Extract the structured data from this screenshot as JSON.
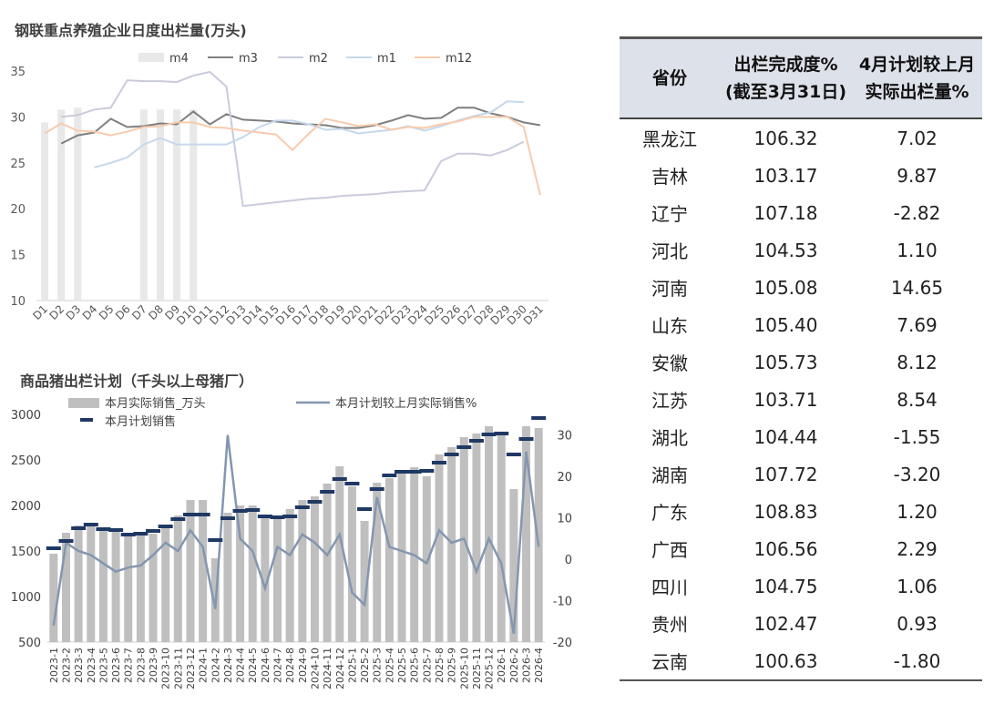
{
  "charts_titles": {
    "top": "钢联重点养殖企业日度出栏量(万头)",
    "bottom": "商品猪出栏计划（千头以上母猪厂）"
  },
  "chart_data": [
    {
      "type": "line",
      "title": "钢联重点养殖企业日度出栏量(万头)",
      "categories": [
        "D1",
        "D2",
        "D3",
        "D4",
        "D5",
        "D6",
        "D7",
        "D8",
        "D9",
        "D10",
        "D11",
        "D12",
        "D13",
        "D14",
        "D15",
        "D16",
        "D17",
        "D18",
        "D19",
        "D20",
        "D21",
        "D22",
        "D23",
        "D24",
        "D25",
        "D26",
        "D27",
        "D28",
        "D29",
        "D30",
        "D31"
      ],
      "ylim": [
        10,
        35
      ],
      "yticks": [
        10,
        15,
        20,
        25,
        30,
        35
      ],
      "series": [
        {
          "name": "m4",
          "kind": "bar",
          "color": "#e8e8e8",
          "values": [
            29.4,
            30.8,
            31.0,
            null,
            null,
            null,
            30.8,
            30.8,
            30.8,
            30.8,
            null,
            null,
            null,
            null,
            null,
            null,
            null,
            null,
            null,
            null,
            null,
            null,
            null,
            null,
            null,
            null,
            null,
            null,
            null,
            null,
            null
          ]
        },
        {
          "name": "m3",
          "kind": "line",
          "color": "#7f7f7f",
          "values": [
            null,
            27.1,
            28.0,
            28.3,
            29.8,
            28.9,
            29.0,
            29.3,
            29.2,
            30.6,
            29.2,
            30.3,
            29.7,
            29.6,
            29.5,
            29.3,
            29.2,
            29.1,
            28.8,
            28.8,
            29.1,
            29.6,
            30.2,
            29.8,
            29.9,
            31.0,
            31.0,
            30.4,
            30.0,
            29.4,
            29.1
          ]
        },
        {
          "name": "m2",
          "kind": "line",
          "color": "#c9cbdc",
          "values": [
            null,
            30.0,
            30.2,
            30.8,
            31.0,
            34.0,
            33.9,
            33.9,
            33.8,
            34.5,
            34.9,
            33.3,
            20.3,
            20.5,
            20.7,
            20.9,
            21.1,
            21.2,
            21.4,
            21.5,
            21.6,
            21.8,
            21.9,
            22.0,
            25.2,
            26.0,
            26.0,
            25.8,
            26.4,
            27.3,
            null
          ]
        },
        {
          "name": "m1",
          "kind": "line",
          "color": "#c5d8ec",
          "values": [
            null,
            null,
            null,
            24.5,
            25.0,
            25.6,
            27.0,
            27.7,
            27.0,
            27.0,
            27.0,
            27.0,
            27.8,
            28.9,
            29.6,
            29.6,
            29.2,
            28.6,
            28.7,
            28.2,
            28.4,
            28.6,
            29.0,
            28.5,
            29.0,
            29.6,
            30.1,
            30.5,
            31.7,
            31.6,
            null
          ]
        },
        {
          "name": "m12",
          "kind": "line",
          "color": "#f8cbad",
          "values": [
            28.2,
            29.3,
            28.5,
            28.4,
            28.0,
            28.4,
            28.9,
            29.0,
            29.4,
            29.4,
            28.9,
            28.8,
            28.5,
            28.3,
            28.1,
            26.4,
            28.2,
            29.8,
            29.4,
            29.0,
            29.2,
            28.6,
            28.9,
            28.8,
            29.2,
            29.5,
            30.0,
            30.0,
            30.0,
            28.9,
            21.5
          ]
        }
      ]
    },
    {
      "type": "bar",
      "title": "商品猪出栏计划（千头以上母猪厂）",
      "categories": [
        "2023-1",
        "2023-2",
        "2023-3",
        "2023-4",
        "2023-5",
        "2023-6",
        "2023-7",
        "2023-8",
        "2023-9",
        "2023-10",
        "2023-11",
        "2023-12",
        "2024-1",
        "2024-2",
        "2024-3",
        "2024-4",
        "2024-5",
        "2024-6",
        "2024-7",
        "2024-8",
        "2024-9",
        "2024-10",
        "2024-11",
        "2024-12",
        "2025-1",
        "2025-2",
        "2025-3",
        "2025-4",
        "2025-5",
        "2025-6",
        "2025-7",
        "2025-8",
        "2025-9",
        "2025-10",
        "2025-11",
        "2025-12",
        "2026-1",
        "2026-2",
        "2026-3",
        "2026-4"
      ],
      "ylim": [
        500,
        3000
      ],
      "yticks": [
        500,
        1000,
        1500,
        2000,
        2500,
        3000
      ],
      "y2lim": [
        -20,
        35
      ],
      "y2ticks": [
        -20,
        -10,
        0,
        10,
        20,
        30
      ],
      "series": [
        {
          "name": "本月实际销售_万头",
          "kind": "bar",
          "axis": "left",
          "color": "#bfbfbf",
          "values": [
            1470,
            1700,
            1780,
            1790,
            1720,
            1710,
            1690,
            1670,
            1690,
            1760,
            1890,
            2060,
            2060,
            1420,
            1920,
            2000,
            2000,
            1860,
            1870,
            1960,
            2060,
            2100,
            2240,
            2430,
            2210,
            1830,
            2250,
            2300,
            2350,
            2420,
            2320,
            2560,
            2640,
            2750,
            2790,
            2870,
            2800,
            2180,
            2870,
            2850
          ]
        },
        {
          "name": "本月计划销售",
          "kind": "marker",
          "axis": "left",
          "color": "#1f3864",
          "values": [
            1530,
            1610,
            1750,
            1790,
            1740,
            1730,
            1680,
            1690,
            1720,
            1770,
            1850,
            1900,
            1900,
            1620,
            1860,
            1940,
            1950,
            1880,
            1870,
            1880,
            1980,
            2040,
            2150,
            2290,
            2240,
            1960,
            2180,
            2330,
            2370,
            2370,
            2380,
            2470,
            2560,
            2640,
            2710,
            2780,
            2790,
            2560,
            2730,
            2960
          ]
        },
        {
          "name": "本月计划较上月实际销售%",
          "kind": "line",
          "axis": "right",
          "color": "#8496b0",
          "values": [
            -16,
            4,
            2,
            1,
            -1,
            -3,
            -2,
            -1.5,
            1,
            4,
            2,
            7,
            3,
            -12,
            30,
            5,
            2,
            -7,
            3,
            1,
            6,
            4,
            1,
            6,
            -8,
            -11,
            15,
            3,
            2,
            1,
            -1,
            7,
            4,
            5,
            -3,
            5,
            -1,
            -18,
            26,
            3
          ]
        }
      ]
    }
  ],
  "legend2": {
    "bar": "本月实际销售_万头",
    "line": "本月计划较上月实际销售%",
    "marker": "本月计划销售"
  },
  "table": {
    "headers": [
      "省份",
      "出栏完成度%\n(截至3月31日)",
      "4月计划较上月\n实际出栏量%"
    ],
    "rows": [
      [
        "黑龙江",
        "106.32",
        "7.02"
      ],
      [
        "吉林",
        "103.17",
        "9.87"
      ],
      [
        "辽宁",
        "107.18",
        "-2.82"
      ],
      [
        "河北",
        "104.53",
        "1.10"
      ],
      [
        "河南",
        "105.08",
        "14.65"
      ],
      [
        "山东",
        "105.40",
        "7.69"
      ],
      [
        "安徽",
        "105.73",
        "8.12"
      ],
      [
        "江苏",
        "103.71",
        "8.54"
      ],
      [
        "湖北",
        "104.44",
        "-1.55"
      ],
      [
        "湖南",
        "107.72",
        "-3.20"
      ],
      [
        "广东",
        "108.83",
        "1.20"
      ],
      [
        "广西",
        "106.56",
        "2.29"
      ],
      [
        "四川",
        "104.75",
        "1.06"
      ],
      [
        "贵州",
        "102.47",
        "0.93"
      ],
      [
        "云南",
        "100.63",
        "-1.80"
      ]
    ]
  }
}
